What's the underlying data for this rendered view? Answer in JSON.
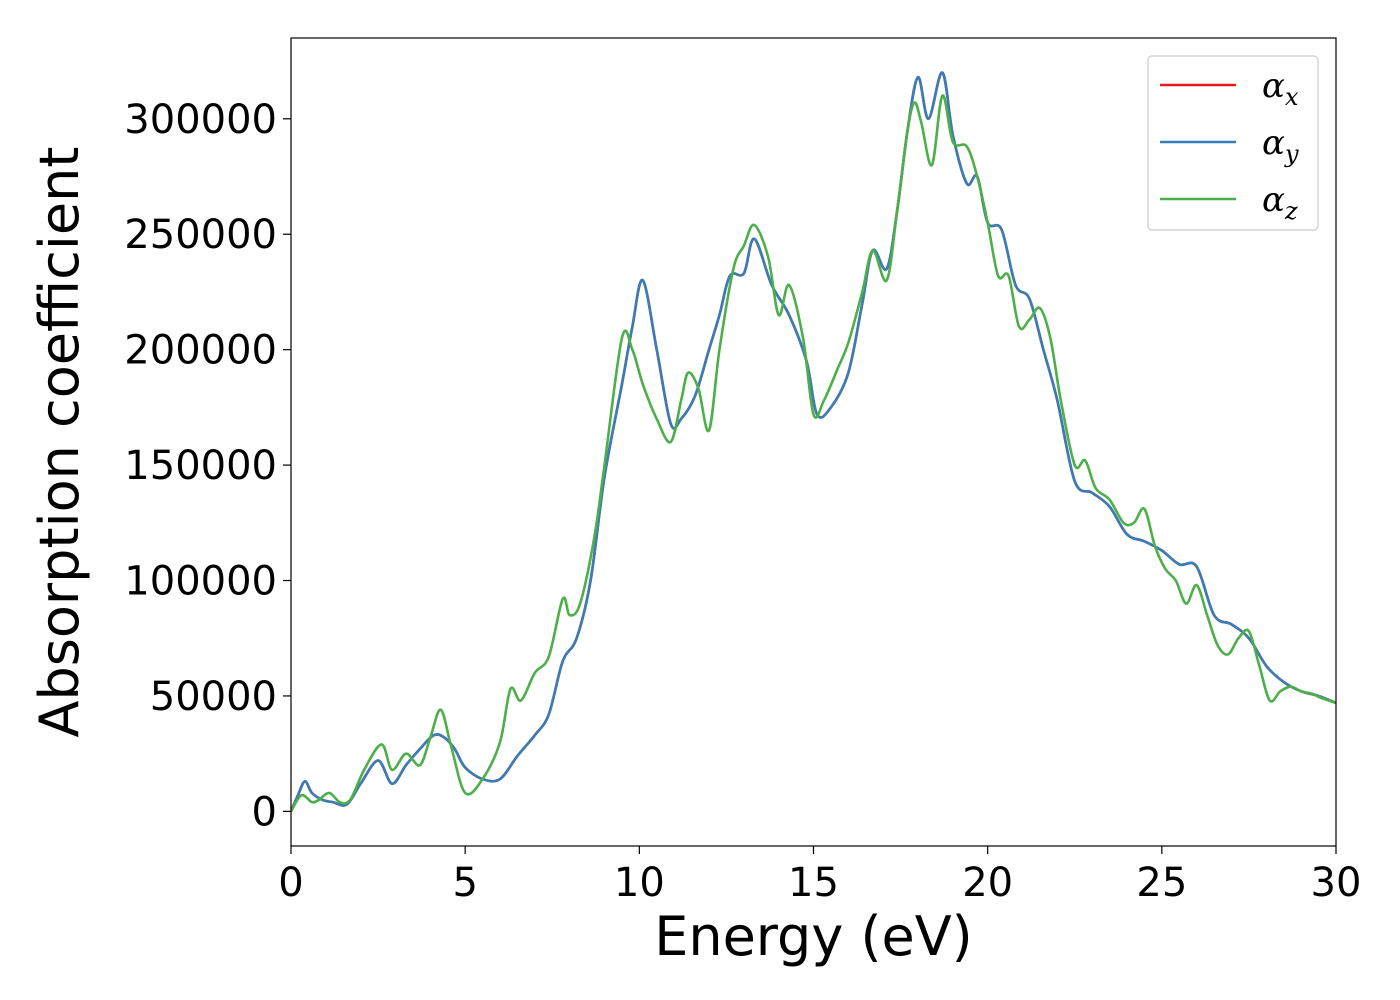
{
  "chart_data": {
    "type": "line",
    "title": "",
    "xlabel": "Energy (eV)",
    "ylabel": "Absorption coefficient",
    "xlim": [
      0,
      30
    ],
    "ylim": [
      -15000,
      335000
    ],
    "xticks": [
      0,
      5,
      10,
      15,
      20,
      25,
      30
    ],
    "xtick_labels": [
      "0",
      "5",
      "10",
      "15",
      "20",
      "25",
      "30"
    ],
    "yticks": [
      0,
      50000,
      100000,
      150000,
      200000,
      250000,
      300000
    ],
    "ytick_labels": [
      "0",
      "50000",
      "100000",
      "150000",
      "200000",
      "250000",
      "300000"
    ],
    "grid": false,
    "legend_position": "top-right",
    "series": [
      {
        "name": "αx",
        "symbol": "α",
        "subscript": "x",
        "color": "#e41a1c",
        "x": [
          0,
          0.2,
          0.4,
          0.6,
          0.9,
          1.2,
          1.6,
          2.0,
          2.5,
          2.9,
          3.3,
          3.7,
          4.1,
          4.4,
          4.7,
          5.0,
          5.5,
          6.0,
          6.5,
          7.0,
          7.4,
          7.8,
          8.2,
          8.6,
          9.0,
          9.5,
          9.8,
          10.1,
          10.5,
          10.9,
          11.2,
          11.6,
          12.0,
          12.3,
          12.6,
          13.0,
          13.3,
          13.8,
          14.3,
          14.8,
          15.1,
          15.5,
          16.0,
          16.4,
          16.7,
          17.1,
          17.4,
          17.7,
          18.0,
          18.3,
          18.7,
          19.0,
          19.4,
          19.7,
          20.0,
          20.4,
          20.8,
          21.2,
          21.6,
          22.0,
          22.5,
          23.0,
          23.5,
          24.0,
          24.5,
          25.0,
          25.5,
          26.0,
          26.5,
          27.0,
          27.5,
          28.0,
          28.5,
          29.0,
          29.5,
          30.0
        ],
        "y": [
          0,
          7000,
          13000,
          8000,
          5000,
          4000,
          3000,
          12000,
          22000,
          12000,
          20000,
          27000,
          33000,
          32000,
          27000,
          19000,
          14000,
          14000,
          24000,
          33000,
          42000,
          65000,
          75000,
          100000,
          145000,
          185000,
          210000,
          230000,
          200000,
          168000,
          170000,
          180000,
          200000,
          215000,
          232000,
          233000,
          248000,
          228000,
          215000,
          195000,
          172000,
          175000,
          190000,
          220000,
          243000,
          235000,
          260000,
          295000,
          318000,
          300000,
          320000,
          293000,
          272000,
          275000,
          255000,
          252000,
          228000,
          222000,
          200000,
          178000,
          143000,
          138000,
          132000,
          120000,
          117000,
          113000,
          107000,
          106000,
          85000,
          81000,
          75000,
          63000,
          56000,
          52000,
          50000,
          47000
        ]
      },
      {
        "name": "αy",
        "symbol": "α",
        "subscript": "y",
        "color": "#377eb8",
        "x": [
          0,
          0.2,
          0.4,
          0.6,
          0.9,
          1.2,
          1.6,
          2.0,
          2.5,
          2.9,
          3.3,
          3.7,
          4.1,
          4.4,
          4.7,
          5.0,
          5.5,
          6.0,
          6.5,
          7.0,
          7.4,
          7.8,
          8.2,
          8.6,
          9.0,
          9.5,
          9.8,
          10.1,
          10.5,
          10.9,
          11.2,
          11.6,
          12.0,
          12.3,
          12.6,
          13.0,
          13.3,
          13.8,
          14.3,
          14.8,
          15.1,
          15.5,
          16.0,
          16.4,
          16.7,
          17.1,
          17.4,
          17.7,
          18.0,
          18.3,
          18.7,
          19.0,
          19.4,
          19.7,
          20.0,
          20.4,
          20.8,
          21.2,
          21.6,
          22.0,
          22.5,
          23.0,
          23.5,
          24.0,
          24.5,
          25.0,
          25.5,
          26.0,
          26.5,
          27.0,
          27.5,
          28.0,
          28.5,
          29.0,
          29.5,
          30.0
        ],
        "y": [
          0,
          7000,
          13000,
          8000,
          5000,
          4000,
          3000,
          12000,
          22000,
          12000,
          20000,
          27000,
          33000,
          32000,
          27000,
          19000,
          14000,
          14000,
          24000,
          33000,
          42000,
          65000,
          75000,
          100000,
          145000,
          185000,
          210000,
          230000,
          200000,
          168000,
          170000,
          180000,
          200000,
          215000,
          232000,
          233000,
          248000,
          228000,
          215000,
          195000,
          172000,
          175000,
          190000,
          220000,
          243000,
          235000,
          260000,
          295000,
          318000,
          300000,
          320000,
          293000,
          272000,
          275000,
          255000,
          252000,
          228000,
          222000,
          200000,
          178000,
          143000,
          138000,
          132000,
          120000,
          117000,
          113000,
          107000,
          106000,
          85000,
          81000,
          75000,
          63000,
          56000,
          52000,
          50000,
          47000
        ]
      },
      {
        "name": "αz",
        "symbol": "α",
        "subscript": "z",
        "color": "#4daf4a",
        "x": [
          0,
          0.3,
          0.6,
          0.8,
          1.1,
          1.4,
          1.7,
          2.1,
          2.6,
          2.9,
          3.3,
          3.7,
          4.0,
          4.3,
          4.6,
          5.0,
          5.5,
          6.0,
          6.3,
          6.6,
          7.0,
          7.4,
          7.8,
          8.0,
          8.3,
          8.7,
          9.0,
          9.5,
          9.8,
          10.1,
          10.5,
          10.9,
          11.2,
          11.4,
          11.7,
          12.0,
          12.3,
          12.7,
          13.0,
          13.3,
          13.7,
          14.0,
          14.3,
          14.7,
          15.0,
          15.3,
          15.7,
          16.0,
          16.4,
          16.7,
          17.1,
          17.4,
          17.7,
          17.9,
          18.1,
          18.4,
          18.7,
          19.0,
          19.4,
          19.7,
          20.0,
          20.3,
          20.6,
          20.9,
          21.2,
          21.5,
          21.8,
          22.1,
          22.5,
          22.8,
          23.1,
          23.5,
          23.9,
          24.2,
          24.5,
          24.8,
          25.1,
          25.4,
          25.7,
          26.0,
          26.3,
          26.6,
          26.9,
          27.2,
          27.5,
          27.8,
          28.1,
          28.4,
          28.7,
          29.0,
          29.3,
          29.6,
          30.0
        ],
        "y": [
          0,
          7000,
          4000,
          5000,
          8000,
          4000,
          5000,
          18000,
          29000,
          18000,
          25000,
          20000,
          32000,
          44000,
          28000,
          8000,
          14000,
          30000,
          53000,
          48000,
          60000,
          67000,
          92000,
          85000,
          90000,
          118000,
          150000,
          205000,
          200000,
          185000,
          170000,
          160000,
          178000,
          190000,
          183000,
          165000,
          200000,
          235000,
          245000,
          254000,
          240000,
          215000,
          228000,
          205000,
          172000,
          178000,
          192000,
          203000,
          225000,
          243000,
          230000,
          260000,
          295000,
          307000,
          298000,
          280000,
          310000,
          290000,
          288000,
          275000,
          255000,
          232000,
          232000,
          210000,
          213000,
          218000,
          205000,
          178000,
          150000,
          152000,
          140000,
          135000,
          125000,
          125000,
          131000,
          115000,
          105000,
          100000,
          90000,
          98000,
          85000,
          72000,
          68000,
          75000,
          78000,
          63000,
          48000,
          52000,
          54000,
          52000,
          51000,
          49000,
          47000
        ]
      }
    ]
  }
}
